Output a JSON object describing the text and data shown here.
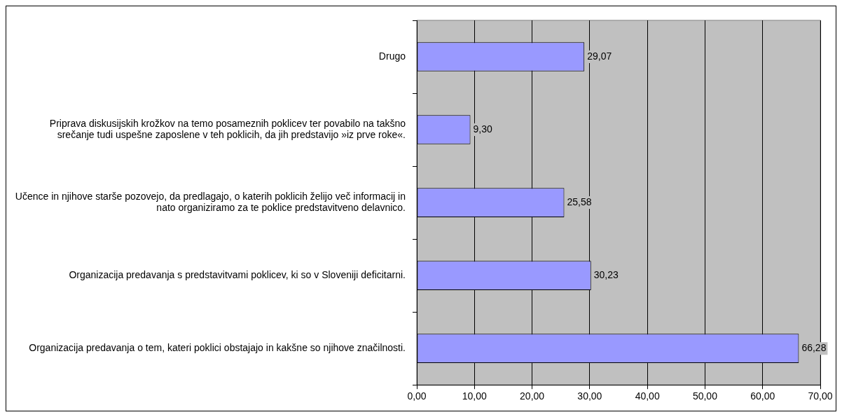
{
  "chart_data": {
    "type": "bar",
    "orientation": "horizontal",
    "categories": [
      "Drugo",
      "Priprava diskusijskih krožkov na temo posameznih poklicev ter povabilo na takšno srečanje tudi uspešne zaposlene v teh poklicih, da jih predstavijo »iz prve roke«.",
      "Učence in njihove starše pozovejo, da predlagajo, o katerih poklicih želijo več informacij in nato organiziramo za te poklice predstavitveno delavnico.",
      "Organizacija predavanja s predstavitvami poklicev, ki so v Sloveniji deficitarni.",
      "Organizacija predavanja o tem, kateri poklici obstajajo in kakšne so njihove značilnosti."
    ],
    "values": [
      29.07,
      9.3,
      25.58,
      30.23,
      66.28
    ],
    "value_labels": [
      "29,07",
      "9,30",
      "25,58",
      "30,23",
      "66,28"
    ],
    "color": "#9999ff",
    "xlim": [
      0,
      70
    ],
    "xticks": [
      {
        "value": 0,
        "label": "0,00"
      },
      {
        "value": 10,
        "label": "10,00"
      },
      {
        "value": 20,
        "label": "20,00"
      },
      {
        "value": 30,
        "label": "30,00"
      },
      {
        "value": 40,
        "label": "40,00"
      },
      {
        "value": 50,
        "label": "50,00"
      },
      {
        "value": 60,
        "label": "60,00"
      },
      {
        "value": 70,
        "label": "70,00"
      }
    ],
    "grid": "x",
    "legend": false
  }
}
